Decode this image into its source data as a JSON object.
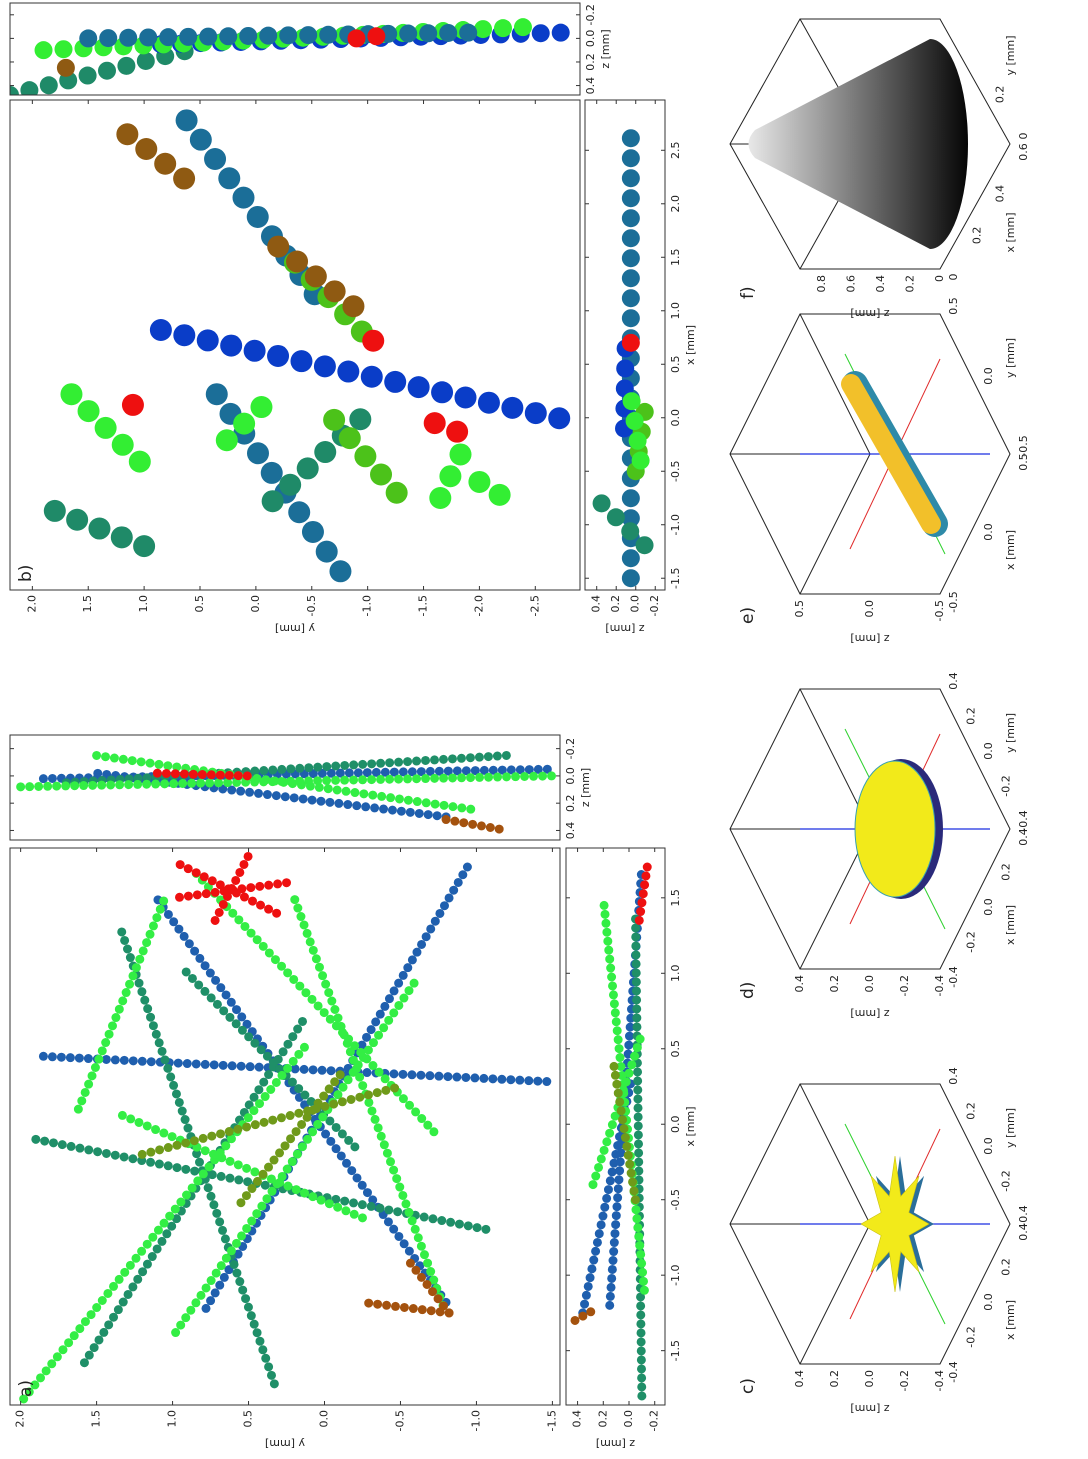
{
  "chart_data": [
    {
      "type": "scatter",
      "panel": "a)",
      "ylabel": "y [mm]",
      "xlim": [
        -1.86,
        1.83
      ],
      "ylim": [
        -1.55,
        2.07
      ],
      "yticks": [
        {
          "value": 2,
          "label": "2.0"
        },
        1.5,
        {
          "value": 1,
          "label": "1.0"
        },
        0.5,
        {
          "value": 0,
          "label": "0.0"
        },
        -0.5,
        {
          "value": -1,
          "label": "-1.0"
        },
        -1.5
      ],
      "series": [
        {
          "color": "#1f5fae",
          "x": [
            0.45,
            0.28
          ],
          "y": [
            1.85,
            -1.52
          ]
        },
        {
          "color": "#1f5fae",
          "x": [
            -1.22,
            1.72
          ],
          "y": [
            0.78,
            -0.95
          ]
        },
        {
          "color": "#1f5fae",
          "x": [
            -1.18,
            1.52
          ],
          "y": [
            -0.8,
            1.12
          ]
        },
        {
          "color": "#1f8f68",
          "x": [
            -1.72,
            1.32
          ],
          "y": [
            0.33,
            1.35
          ]
        },
        {
          "color": "#1f8f68",
          "x": [
            -1.58,
            0.72
          ],
          "y": [
            1.58,
            0.12
          ]
        },
        {
          "color": "#1f8f68",
          "x": [
            -0.1,
            -0.7
          ],
          "y": [
            1.9,
            -1.08
          ]
        },
        {
          "color": "#1f8f68",
          "x": [
            -0.15,
            1.05
          ],
          "y": [
            -0.2,
            0.95
          ]
        },
        {
          "color": "#33ee44",
          "x": [
            -1.82,
            0.55
          ],
          "y": [
            1.98,
            0.1
          ]
        },
        {
          "color": "#33ee44",
          "x": [
            -1.38,
            0.95
          ],
          "y": [
            0.98,
            -0.6
          ]
        },
        {
          "color": "#33ee44",
          "x": [
            -1.2,
            1.5
          ],
          "y": [
            -0.78,
            0.2
          ]
        },
        {
          "color": "#33ee44",
          "x": [
            -0.05,
            1.7
          ],
          "y": [
            -0.72,
            0.88
          ]
        },
        {
          "color": "#33ee44",
          "x": [
            -0.62,
            0.08
          ],
          "y": [
            -0.25,
            1.38
          ]
        },
        {
          "color": "#33ee44",
          "x": [
            0.1,
            1.5
          ],
          "y": [
            1.62,
            1.05
          ]
        },
        {
          "color": "#6f9a1a",
          "x": [
            -0.52,
            0.35
          ],
          "y": [
            0.55,
            -0.12
          ]
        },
        {
          "color": "#6f9a1a",
          "x": [
            -0.2,
            0.25
          ],
          "y": [
            1.2,
            -0.5
          ]
        },
        {
          "color": "#a4520e",
          "x": [
            -1.25,
            -0.9
          ],
          "y": [
            -0.82,
            -0.55
          ]
        },
        {
          "color": "#a4520e",
          "x": [
            -1.25,
            -1.18
          ],
          "y": [
            -0.82,
            -0.25
          ]
        },
        {
          "color": "#ee1010",
          "x": [
            1.72,
            1.38
          ],
          "y": [
            0.95,
            0.28
          ]
        },
        {
          "color": "#ee1010",
          "x": [
            1.35,
            1.78
          ],
          "y": [
            0.72,
            0.5
          ]
        },
        {
          "color": "#ee1010",
          "x": [
            1.6,
            1.5
          ],
          "y": [
            0.25,
            0.98
          ]
        }
      ]
    },
    {
      "type": "scatter",
      "xlabel": "x [mm]",
      "ylabel": "z [mm]",
      "xlim": [
        -1.86,
        1.83
      ],
      "ylim": [
        -0.28,
        0.49
      ],
      "xticks": [
        -1.5,
        {
          "value": -1,
          "label": "-1.0"
        },
        -0.5,
        {
          "value": 0,
          "label": "0.0"
        },
        0.5,
        {
          "value": 1,
          "label": "1.0"
        },
        1.5
      ],
      "yticks": [
        0.4,
        0.2,
        {
          "value": 0,
          "label": "0.0"
        },
        -0.2
      ],
      "series": [
        {
          "color": "#1f5fae",
          "x": [
            -1.25,
            0.3
          ],
          "y": [
            0.36,
            -0.02
          ]
        },
        {
          "color": "#1f5fae",
          "x": [
            -1.2,
            1.7
          ],
          "y": [
            0.15,
            -0.1
          ]
        },
        {
          "color": "#a4520e",
          "x": [
            -1.3,
            -1.22
          ],
          "y": [
            0.42,
            0.25
          ]
        },
        {
          "color": "#1f8f68",
          "x": [
            -1.8,
            1.4
          ],
          "y": [
            -0.1,
            -0.05
          ]
        },
        {
          "color": "#33ee44",
          "x": [
            -0.4,
            0.6
          ],
          "y": [
            0.28,
            -0.1
          ]
        },
        {
          "color": "#33ee44",
          "x": [
            -1.1,
            1.5
          ],
          "y": [
            -0.12,
            0.2
          ]
        },
        {
          "color": "#6f9a1a",
          "x": [
            -0.5,
            0.4
          ],
          "y": [
            -0.05,
            0.12
          ]
        },
        {
          "color": "#ee1010",
          "x": [
            1.35,
            1.75
          ],
          "y": [
            -0.08,
            -0.15
          ]
        }
      ]
    },
    {
      "type": "scatter",
      "xlabel": "z [mm]",
      "xlim": [
        0.47,
        -0.3
      ],
      "ylim": [
        -1.55,
        2.07
      ],
      "xticks": [
        0.4,
        0.2,
        {
          "value": 0,
          "label": "0.0"
        },
        -0.2
      ],
      "series": [
        {
          "color": "#1f5fae",
          "x": [
            0.3,
            -0.02
          ],
          "y": [
            -0.8,
            1.5
          ]
        },
        {
          "color": "#1f5fae",
          "x": [
            0.02,
            -0.05
          ],
          "y": [
            1.85,
            -1.52
          ]
        },
        {
          "color": "#1f8f68",
          "x": [
            0.05,
            -0.15
          ],
          "y": [
            1.7,
            -1.2
          ]
        },
        {
          "color": "#33ee44",
          "x": [
            -0.15,
            0.25
          ],
          "y": [
            1.5,
            -1.0
          ]
        },
        {
          "color": "#33ee44",
          "x": [
            0.08,
            0.0
          ],
          "y": [
            2.0,
            -1.5
          ]
        },
        {
          "color": "#a4520e",
          "x": [
            0.32,
            0.4
          ],
          "y": [
            -0.8,
            -1.2
          ]
        },
        {
          "color": "#ee1010",
          "x": [
            -0.02,
            0.0
          ],
          "y": [
            1.1,
            0.5
          ]
        }
      ]
    },
    {
      "type": "scatter",
      "panel": "b)",
      "ylabel": "y [mm]",
      "xlim": [
        -1.61,
        2.97
      ],
      "ylim": [
        -2.9,
        2.2
      ],
      "yticks": [
        {
          "value": 2,
          "label": "2.0"
        },
        1.5,
        {
          "value": 1,
          "label": "1.0"
        },
        0.5,
        {
          "value": 0,
          "label": "0.0"
        },
        -0.5,
        {
          "value": -1,
          "label": "-1.0"
        },
        -1.5,
        {
          "value": -2,
          "label": "-2.0"
        },
        -2.5
      ],
      "series": [
        {
          "color": "#0a3dc8",
          "x": [
            0.82,
            -0.02
          ],
          "y": [
            0.85,
            -2.78
          ]
        },
        {
          "color": "#1b6e98",
          "x": [
            2.78,
            1.12
          ],
          "y": [
            0.62,
            -0.55
          ]
        },
        {
          "color": "#1b6e98",
          "x": [
            0.22,
            -1.5
          ],
          "y": [
            0.35,
            -0.8
          ]
        },
        {
          "color": "#1f8a68",
          "x": [
            -1.2,
            -0.85
          ],
          "y": [
            1.0,
            1.85
          ]
        },
        {
          "color": "#1f8a68",
          "x": [
            -0.78,
            0.05
          ],
          "y": [
            -0.15,
            -1.0
          ]
        },
        {
          "color": "#33ee33",
          "x": [
            0.22,
            -0.45
          ],
          "y": [
            1.65,
            1.0
          ]
        },
        {
          "color": "#33ee33",
          "x": [
            0.1,
            -0.3
          ],
          "y": [
            -0.05,
            0.35
          ]
        },
        {
          "color": "#33ee33",
          "x": [
            -0.6,
            -0.8
          ],
          "y": [
            -2.0,
            -2.3
          ]
        },
        {
          "color": "#33ee33",
          "x": [
            -0.75,
            -0.3
          ],
          "y": [
            -1.65,
            -1.85
          ]
        },
        {
          "color": "#4cc21a",
          "x": [
            1.45,
            0.75
          ],
          "y": [
            -0.35,
            -1.0
          ]
        },
        {
          "color": "#4cc21a",
          "x": [
            -0.02,
            -0.75
          ],
          "y": [
            -0.7,
            -1.3
          ]
        },
        {
          "color": "#8f5a12",
          "x": [
            2.65,
            2.12
          ],
          "y": [
            1.15,
            0.5
          ]
        },
        {
          "color": "#8f5a12",
          "x": [
            1.6,
            1.02
          ],
          "y": [
            -0.2,
            -0.9
          ]
        },
        {
          "color": "#ee1010",
          "x": [
            0.72,
            0.65
          ],
          "y": [
            -1.05,
            -1.15
          ]
        },
        {
          "color": "#ee1010",
          "x": [
            -0.05,
            -0.15
          ],
          "y": [
            -1.6,
            -1.85
          ]
        },
        {
          "color": "#ee1010",
          "x": [
            0.12,
            0.05
          ],
          "y": [
            1.1,
            1.0
          ]
        }
      ]
    },
    {
      "type": "scatter",
      "xlabel": "x [mm]",
      "ylabel": "z [mm]",
      "xlim": [
        -1.61,
        2.97
      ],
      "ylim": [
        -0.3,
        0.52
      ],
      "xticks": [
        -1.5,
        {
          "value": -1,
          "label": "-1.0"
        },
        -0.5,
        {
          "value": 0,
          "label": "0.0"
        },
        0.5,
        {
          "value": 1,
          "label": "1.0"
        },
        1.5,
        {
          "value": 2,
          "label": "2.0"
        },
        2.5
      ],
      "yticks": [
        0.4,
        0.2,
        {
          "value": 0,
          "label": "0.0"
        },
        -0.2
      ],
      "series": [
        {
          "color": "#1b6e98",
          "x": [
            -1.5,
            2.78
          ],
          "y": [
            0.05,
            0.05
          ]
        },
        {
          "color": "#0a3dc8",
          "x": [
            -0.1,
            0.82
          ],
          "y": [
            0.12,
            0.1
          ]
        },
        {
          "color": "#4cc21a",
          "x": [
            -0.5,
            0.1
          ],
          "y": [
            0.0,
            -0.1
          ]
        },
        {
          "color": "#1f8a68",
          "x": [
            -0.8,
            -1.2
          ],
          "y": [
            0.35,
            -0.1
          ]
        },
        {
          "color": "#ee1010",
          "x": [
            0.7,
            0.72
          ],
          "y": [
            0.05,
            0.0
          ]
        },
        {
          "color": "#33ee33",
          "x": [
            -0.4,
            0.2
          ],
          "y": [
            -0.05,
            0.05
          ]
        }
      ]
    },
    {
      "type": "scatter",
      "xlabel": "z [mm]",
      "xlim": [
        0.48,
        -0.3
      ],
      "ylim": [
        -2.9,
        2.2
      ],
      "xticks": [
        0.4,
        0.2,
        {
          "value": 0,
          "label": "0.0"
        },
        -0.2
      ],
      "series": [
        {
          "color": "#1f8a68",
          "x": [
            0.48,
            0.1
          ],
          "y": [
            2.2,
            0.6
          ]
        },
        {
          "color": "#0a3dc8",
          "x": [
            0.05,
            -0.05
          ],
          "y": [
            0.85,
            -2.78
          ]
        },
        {
          "color": "#33ee33",
          "x": [
            0.1,
            -0.1
          ],
          "y": [
            1.9,
            -2.5
          ]
        },
        {
          "color": "#1b6e98",
          "x": [
            0.0,
            -0.05
          ],
          "y": [
            1.5,
            -2.0
          ]
        },
        {
          "color": "#ee1010",
          "x": [
            0.0,
            -0.02
          ],
          "y": [
            -0.9,
            -1.1
          ]
        },
        {
          "color": "#8f5a12",
          "x": [
            0.25,
            0.25
          ],
          "y": [
            1.7,
            1.6
          ]
        }
      ]
    },
    {
      "type": "surface3d",
      "panel": "c)",
      "xlabel": "x [mm]",
      "ylabel": "y [mm]",
      "zlabel": "z [mm]",
      "xlim": [
        -0.4,
        0.4
      ],
      "ylim": [
        -0.4,
        0.4
      ],
      "zlim": [
        -0.4,
        0.4
      ],
      "xticks": [
        -0.4,
        -0.2,
        {
          "value": 0,
          "label": "0.0"
        },
        0.2,
        0.4
      ],
      "yticks": [
        -0.4,
        -0.2,
        {
          "value": 0,
          "label": "0.0"
        },
        0.2,
        0.4
      ],
      "zticks": [
        -0.4,
        -0.2,
        {
          "value": 0,
          "label": "0.0"
        },
        0.2,
        0.4
      ]
    },
    {
      "type": "surface3d",
      "panel": "d)",
      "xlabel": "x [mm]",
      "ylabel": "y [mm]",
      "zlabel": "z [mm]",
      "xlim": [
        -0.4,
        0.4
      ],
      "ylim": [
        -0.4,
        0.4
      ],
      "zlim": [
        -0.4,
        0.4
      ],
      "xticks": [
        -0.4,
        -0.2,
        {
          "value": 0,
          "label": "0.0"
        },
        0.2,
        0.4
      ],
      "yticks": [
        -0.4,
        -0.2,
        {
          "value": 0,
          "label": "0.0"
        },
        0.2,
        0.4
      ],
      "zticks": [
        -0.4,
        -0.2,
        {
          "value": 0,
          "label": "0.0"
        },
        0.2,
        0.4
      ]
    },
    {
      "type": "surface3d",
      "panel": "e)",
      "xlabel": "x [mm]",
      "ylabel": "y [mm]",
      "zlabel": "z [mm]",
      "xlim": [
        -0.5,
        0.5
      ],
      "ylim": [
        -0.5,
        0.5
      ],
      "zlim": [
        -0.5,
        0.5
      ],
      "xticks": [
        -0.5,
        {
          "value": 0,
          "label": "0.0"
        },
        0.5
      ],
      "yticks": [
        -0.5,
        {
          "value": 0,
          "label": "0.0"
        },
        0.5
      ],
      "zticks": [
        -0.5,
        {
          "value": 0,
          "label": "0.0"
        },
        0.5
      ]
    },
    {
      "type": "surface3d",
      "panel": "f)",
      "xlabel": "x [mm]",
      "ylabel": "y [mm]",
      "zlabel": "z [mm]",
      "xlim": [
        0,
        0.6
      ],
      "ylim": [
        0,
        0.6
      ],
      "zlim": [
        0,
        0.95
      ],
      "xticks": [
        0,
        0.2,
        0.4,
        0.6
      ],
      "yticks": [
        0,
        0.2
      ],
      "zticks": [
        0,
        0.2,
        0.4,
        0.6,
        0.8
      ]
    }
  ]
}
